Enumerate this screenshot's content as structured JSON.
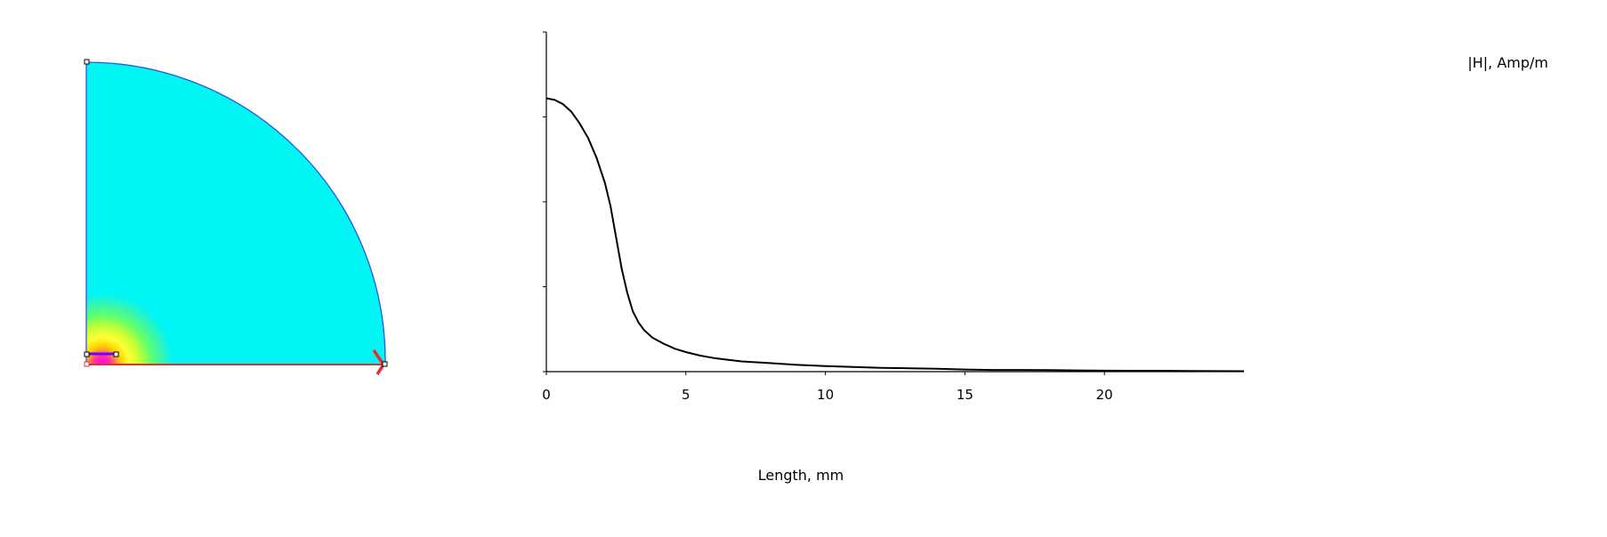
{
  "field_plot": {
    "shape": "quarter-disc",
    "background_color": "#00f5f5",
    "colormap": [
      "#ff00ff",
      "#ff3399",
      "#ffcc00",
      "#ffff33",
      "#ccff33",
      "#66ff66",
      "#33f5b5",
      "#00f5f5"
    ],
    "line_color": "#e03030",
    "outline_color": "#2a5adc"
  },
  "chart_data": {
    "type": "line",
    "title": "",
    "xlabel": "Length, mm",
    "ylabel": "|H|, Amp/m",
    "xlim": [
      0,
      25
    ],
    "ylim": [
      0,
      400
    ],
    "xticks": [
      0,
      5,
      10,
      15,
      20
    ],
    "yticks": [
      0,
      100,
      200,
      300,
      400
    ],
    "grid": false,
    "series": [
      {
        "line_color": "#000000",
        "x": [
          0,
          0.3,
          0.6,
          0.9,
          1.2,
          1.5,
          1.8,
          2.1,
          2.3,
          2.5,
          2.7,
          2.9,
          3.1,
          3.3,
          3.5,
          3.8,
          4.2,
          4.6,
          5.0,
          5.5,
          6.0,
          6.5,
          7.0,
          8.0,
          9.0,
          10.0,
          11.0,
          12.0,
          13.0,
          14.0,
          15.0,
          16.0,
          17.0,
          18.0,
          19.0,
          20.0,
          21.0,
          22.0,
          23.0,
          24.0,
          25.0
        ],
        "y": [
          322,
          320,
          315,
          306,
          292,
          275,
          252,
          222,
          195,
          158,
          121,
          93,
          71,
          58,
          49,
          40,
          33,
          27,
          23,
          19,
          16,
          14,
          12,
          10,
          8,
          6.5,
          5.5,
          4.5,
          4,
          3.5,
          2.5,
          2,
          2,
          1.8,
          1.5,
          1.2,
          1,
          1,
          0.8,
          0.6,
          0.5
        ]
      }
    ]
  }
}
